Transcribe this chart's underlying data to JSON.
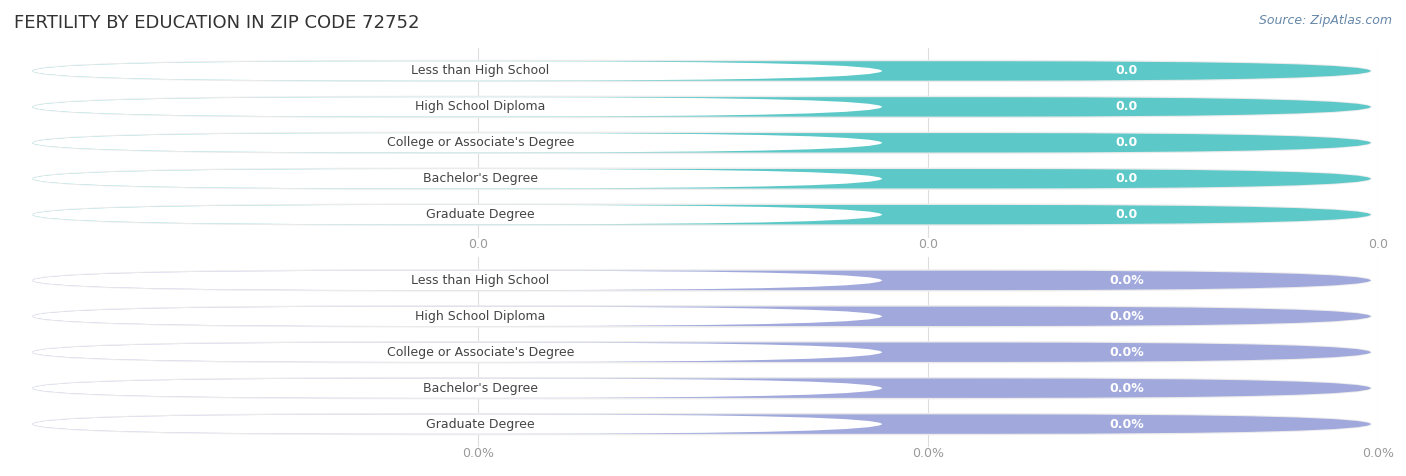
{
  "title": "FERTILITY BY EDUCATION IN ZIP CODE 72752",
  "source": "Source: ZipAtlas.com",
  "categories": [
    "Less than High School",
    "High School Diploma",
    "College or Associate's Degree",
    "Bachelor's Degree",
    "Graduate Degree"
  ],
  "values_top": [
    0.0,
    0.0,
    0.0,
    0.0,
    0.0
  ],
  "values_bottom": [
    0.0,
    0.0,
    0.0,
    0.0,
    0.0
  ],
  "bar_color_top": "#5dc8c8",
  "bar_color_bottom": "#a0a8dc",
  "bg_bar_color": "#ebebeb",
  "white_pill_color": "#ffffff",
  "text_color_dark": "#444444",
  "value_color_top": "#ffffff",
  "value_color_bottom": "#ffffff",
  "tick_label_color": "#999999",
  "tick_labels_top": [
    "0.0",
    "0.0",
    "0.0"
  ],
  "tick_labels_bottom": [
    "0.0%",
    "0.0%",
    "0.0%"
  ],
  "gridline_color": "#dddddd",
  "background_color": "#ffffff",
  "title_color": "#333333",
  "title_fontsize": 13,
  "source_color": "#6688aa",
  "source_fontsize": 9,
  "bar_label_fontsize": 9,
  "value_fontsize": 9,
  "tick_fontsize": 9
}
